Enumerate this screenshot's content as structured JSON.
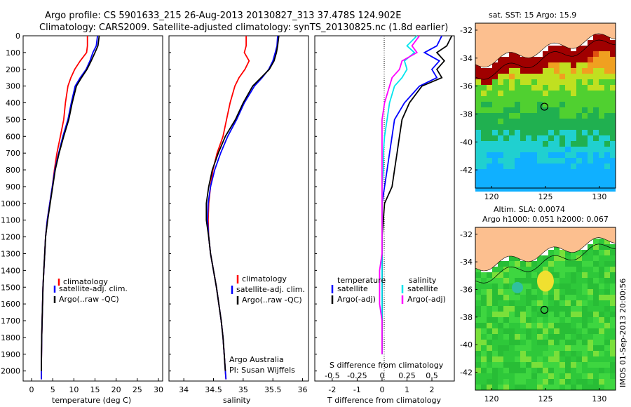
{
  "titles": {
    "line1": "Argo profile: CS 5901633_215 26-Aug-2013 20130827_313 37.478S 124.902E",
    "line2": "Climatology: CARS2009. Satellite-adjusted climatology: synTS_20130825.nc (1.8d earlier)"
  },
  "panel_temperature": {
    "xlabel": "temperature (deg C)",
    "xticks": [
      "0",
      "5",
      "10",
      "15",
      "20",
      "25",
      "30"
    ],
    "legend": [
      "climatology",
      "satellite-adj. clim.",
      "Argo(..raw -QC)"
    ]
  },
  "panel_salinity": {
    "xlabel": "salinity",
    "xticks": [
      "34",
      "34.5",
      "35",
      "35.5",
      "36"
    ],
    "legend": [
      "climatology",
      "satellite-adj. clim.",
      "Argo(..raw -QC)"
    ],
    "credit1": "Argo Australia",
    "credit2": "PI: Susan Wijffels"
  },
  "panel_difference": {
    "top_label": "S difference from climatology",
    "top_ticks": [
      "-0.5",
      "-0.25",
      "0",
      "0.25",
      "0.5"
    ],
    "xlabel": "T difference from climatology",
    "xticks": [
      "-2",
      "-1",
      "0",
      "1",
      "2"
    ],
    "legend_temp_title": "temperature",
    "legend_temp": [
      "satellite",
      "Argo(-adj)"
    ],
    "legend_sal_title": "salinity",
    "legend_sal": [
      "satellite",
      "Argo(-adj)"
    ]
  },
  "depth_ticks": [
    "0",
    "100",
    "200",
    "300",
    "400",
    "500",
    "600",
    "700",
    "800",
    "900",
    "1000",
    "1100",
    "1200",
    "1300",
    "1400",
    "1500",
    "1600",
    "1700",
    "1800",
    "1900",
    "2000"
  ],
  "map_sst": {
    "title": "sat. SST: 15 Argo: 15.9",
    "yticks": [
      "-32",
      "-34",
      "-36",
      "-38",
      "-40",
      "-42"
    ],
    "xticks": [
      "120",
      "125",
      "130"
    ]
  },
  "map_sla": {
    "title1": "Altim. SLA: 0.0074",
    "title2": "Argo h1000: 0.051 h2000: 0.067",
    "yticks": [
      "-32",
      "-34",
      "-36",
      "-38",
      "-40",
      "-42"
    ],
    "xticks": [
      "120",
      "125",
      "130"
    ]
  },
  "stamp": "IMOS 01-Sep-2013 20:00:56",
  "colors": {
    "climatology": "#ff0000",
    "satellite": "#0000ff",
    "argo": "#000000",
    "satellite_sal": "#00e5ee",
    "argo_sal": "#ff00ff",
    "land": "#fcbf8f"
  },
  "chart_data": [
    {
      "type": "line",
      "name": "temperature profile",
      "xlabel": "temperature (deg C)",
      "ylabel": "",
      "xlim": [
        -2,
        31
      ],
      "ylim": [
        2060,
        0
      ],
      "series": [
        {
          "name": "climatology",
          "x": [
            13.2,
            13.2,
            13.0,
            11.5,
            10.2,
            9.3,
            8.6,
            8.0,
            7.6,
            6.8,
            6.0,
            5.4,
            4.9,
            4.3,
            3.7,
            3.3,
            3.1,
            2.9,
            2.7,
            2.6,
            2.5,
            2.4,
            2.35,
            2.3,
            2.3
          ],
          "y": [
            0,
            60,
            100,
            150,
            200,
            250,
            300,
            400,
            500,
            600,
            700,
            800,
            900,
            1000,
            1100,
            1200,
            1300,
            1400,
            1500,
            1600,
            1700,
            1800,
            1900,
            2000,
            2050
          ]
        },
        {
          "name": "satellite-adj. clim.",
          "x": [
            15.6,
            15.3,
            14.5,
            13.8,
            12.9,
            11.5,
            10.3,
            9.4,
            8.6,
            7.4,
            6.4,
            5.5,
            4.9,
            4.3,
            3.7,
            3.3,
            3.1,
            2.9,
            2.7,
            2.6,
            2.5,
            2.4,
            2.35,
            2.3,
            2.3
          ],
          "y": [
            0,
            60,
            100,
            150,
            200,
            250,
            300,
            400,
            500,
            600,
            700,
            800,
            900,
            1000,
            1100,
            1200,
            1300,
            1400,
            1500,
            1600,
            1700,
            1800,
            1900,
            2000,
            2050
          ]
        },
        {
          "name": "Argo(..raw -QC)",
          "x": [
            16.0,
            15.7,
            15.0,
            14.1,
            13.1,
            11.8,
            10.6,
            9.6,
            8.8,
            7.6,
            6.5,
            5.6,
            5.0,
            4.4,
            3.8,
            3.3,
            3.1,
            2.9,
            2.7,
            2.6,
            2.5,
            2.4,
            2.35,
            2.3
          ],
          "y": [
            0,
            60,
            100,
            150,
            200,
            250,
            300,
            400,
            500,
            600,
            700,
            800,
            900,
            1000,
            1100,
            1200,
            1300,
            1400,
            1500,
            1600,
            1700,
            1800,
            1900,
            2000
          ]
        }
      ]
    },
    {
      "type": "line",
      "name": "salinity profile",
      "xlabel": "salinity",
      "ylabel": "",
      "xlim": [
        33.75,
        36.1
      ],
      "ylim": [
        2060,
        0
      ],
      "series": [
        {
          "name": "climatology",
          "x": [
            35.05,
            35.05,
            35.02,
            35.1,
            35.03,
            34.93,
            34.86,
            34.78,
            34.72,
            34.66,
            34.56,
            34.49,
            34.45,
            34.42,
            34.41,
            34.42,
            34.45,
            34.5,
            34.55,
            34.59,
            34.63,
            34.66,
            34.68,
            34.7,
            34.71
          ],
          "y": [
            0,
            60,
            100,
            150,
            200,
            250,
            300,
            400,
            500,
            600,
            700,
            800,
            900,
            1000,
            1100,
            1200,
            1300,
            1400,
            1500,
            1600,
            1700,
            1800,
            1900,
            2000,
            2050
          ]
        },
        {
          "name": "satellite-adj. clim.",
          "x": [
            35.58,
            35.57,
            35.54,
            35.5,
            35.43,
            35.32,
            35.19,
            35.02,
            34.89,
            34.74,
            34.62,
            34.52,
            34.45,
            34.41,
            34.4,
            34.42,
            34.45,
            34.5,
            34.55,
            34.59,
            34.63,
            34.66,
            34.68,
            34.7,
            34.71
          ],
          "y": [
            0,
            60,
            100,
            150,
            200,
            250,
            300,
            400,
            500,
            600,
            700,
            800,
            900,
            1000,
            1100,
            1200,
            1300,
            1400,
            1500,
            1600,
            1700,
            1800,
            1900,
            2000,
            2050
          ]
        },
        {
          "name": "Argo(..raw -QC)",
          "x": [
            35.6,
            35.58,
            35.56,
            35.52,
            35.44,
            35.3,
            35.16,
            35.0,
            34.87,
            34.7,
            34.58,
            34.48,
            34.42,
            34.38,
            34.38,
            34.42,
            34.45,
            34.5,
            34.55,
            34.59,
            34.63,
            34.66,
            34.68,
            34.7
          ],
          "y": [
            0,
            60,
            100,
            150,
            200,
            250,
            300,
            400,
            500,
            600,
            700,
            800,
            900,
            1000,
            1100,
            1200,
            1300,
            1400,
            1500,
            1600,
            1700,
            1800,
            1900,
            2000
          ]
        }
      ]
    },
    {
      "type": "line",
      "name": "difference from climatology",
      "xlabel": "T difference from climatology",
      "ylabel": "",
      "xlim": [
        -2.7,
        2.9
      ],
      "x2label": "S difference from climatology",
      "ylim": [
        2060,
        0
      ],
      "series": [
        {
          "name": "temperature satellite",
          "x": [
            2.4,
            2.2,
            1.7,
            2.3,
            2.0,
            2.2,
            1.5,
            0.9,
            0.5,
            0.4,
            0.3,
            0.2,
            0.1,
            0.0,
            0.0,
            0.0,
            0.0,
            0.0,
            0.0,
            0.0,
            0.0,
            0.0,
            0.0
          ],
          "y": [
            0,
            60,
            100,
            150,
            200,
            250,
            300,
            400,
            500,
            600,
            700,
            800,
            900,
            1000,
            1100,
            1200,
            1300,
            1400,
            1500,
            1600,
            1700,
            1800,
            1900
          ]
        },
        {
          "name": "temperature Argo(-adj)",
          "x": [
            2.8,
            2.6,
            2.2,
            2.5,
            2.2,
            2.4,
            1.6,
            1.1,
            0.8,
            0.7,
            0.6,
            0.5,
            0.4,
            0.1,
            0.05,
            0.0,
            0.0,
            0.0,
            0.0,
            0.0,
            0.0,
            0.0,
            0.0
          ],
          "y": [
            0,
            60,
            100,
            150,
            200,
            250,
            300,
            400,
            500,
            600,
            700,
            800,
            900,
            1000,
            1100,
            1200,
            1300,
            1400,
            1500,
            1600,
            1700,
            1800,
            1900
          ]
        },
        {
          "name": "salinity satellite",
          "x": [
            1.4,
            1.0,
            1.3,
            0.9,
            1.0,
            0.8,
            0.5,
            0.3,
            0.2,
            0.1,
            0.05,
            0.05,
            0.0,
            0.0,
            0.0,
            0.0,
            0.0,
            0.0,
            0.0,
            0.0,
            0.0,
            0.0,
            0.0
          ],
          "y": [
            0,
            60,
            100,
            150,
            200,
            250,
            300,
            400,
            500,
            600,
            700,
            800,
            900,
            1000,
            1100,
            1200,
            1300,
            1400,
            1500,
            1600,
            1700,
            1800,
            1900
          ]
        },
        {
          "name": "salinity Argo(-adj)",
          "x": [
            1.5,
            1.2,
            1.4,
            0.8,
            0.7,
            0.4,
            0.3,
            0.1,
            0.0,
            0.0,
            0.0,
            0.0,
            0.0,
            0.0,
            0.0,
            0.0,
            0.0,
            -0.1,
            -0.1,
            -0.1,
            0.0,
            0.0,
            0.0
          ],
          "y": [
            0,
            60,
            100,
            150,
            200,
            250,
            300,
            400,
            500,
            600,
            700,
            800,
            900,
            1000,
            1100,
            1200,
            1300,
            1400,
            1500,
            1600,
            1700,
            1800,
            1900
          ]
        }
      ]
    },
    {
      "type": "heatmap",
      "name": "sat. SST map",
      "xlim": [
        118.5,
        131.5
      ],
      "ylim": [
        -43.3,
        -31.5
      ],
      "marker": {
        "x": 124.902,
        "y": -37.478
      }
    },
    {
      "type": "heatmap",
      "name": "Altim. SLA map",
      "xlim": [
        118.5,
        131.5
      ],
      "ylim": [
        -43.3,
        -31.5
      ],
      "marker": {
        "x": 124.902,
        "y": -37.478
      }
    }
  ]
}
